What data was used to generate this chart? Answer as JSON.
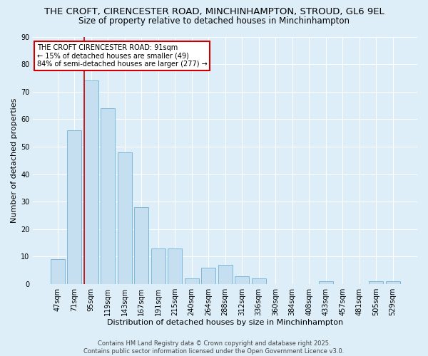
{
  "title": "THE CROFT, CIRENCESTER ROAD, MINCHINHAMPTON, STROUD, GL6 9EL",
  "subtitle": "Size of property relative to detached houses in Minchinhampton",
  "xlabel": "Distribution of detached houses by size in Minchinhampton",
  "ylabel": "Number of detached properties",
  "bar_labels": [
    "47sqm",
    "71sqm",
    "95sqm",
    "119sqm",
    "143sqm",
    "167sqm",
    "191sqm",
    "215sqm",
    "240sqm",
    "264sqm",
    "288sqm",
    "312sqm",
    "336sqm",
    "360sqm",
    "384sqm",
    "408sqm",
    "433sqm",
    "457sqm",
    "481sqm",
    "505sqm",
    "529sqm"
  ],
  "bar_values": [
    9,
    56,
    74,
    64,
    48,
    28,
    13,
    13,
    2,
    6,
    7,
    3,
    2,
    0,
    0,
    0,
    1,
    0,
    0,
    1,
    1
  ],
  "bar_color": "#c5dff0",
  "bar_edge_color": "#7ab8d9",
  "vline_color": "#cc0000",
  "ylim": [
    0,
    90
  ],
  "yticks": [
    0,
    10,
    20,
    30,
    40,
    50,
    60,
    70,
    80,
    90
  ],
  "annotation_title": "THE CROFT CIRENCESTER ROAD: 91sqm",
  "annotation_line1": "← 15% of detached houses are smaller (49)",
  "annotation_line2": "84% of semi-detached houses are larger (277) →",
  "annotation_box_color": "#ffffff",
  "annotation_box_edge": "#cc0000",
  "background_color": "#ddeef8",
  "footer1": "Contains HM Land Registry data © Crown copyright and database right 2025.",
  "footer2": "Contains public sector information licensed under the Open Government Licence v3.0.",
  "title_fontsize": 9.5,
  "subtitle_fontsize": 8.5,
  "axis_label_fontsize": 8,
  "tick_fontsize": 7,
  "footer_fontsize": 6,
  "annotation_fontsize": 7
}
